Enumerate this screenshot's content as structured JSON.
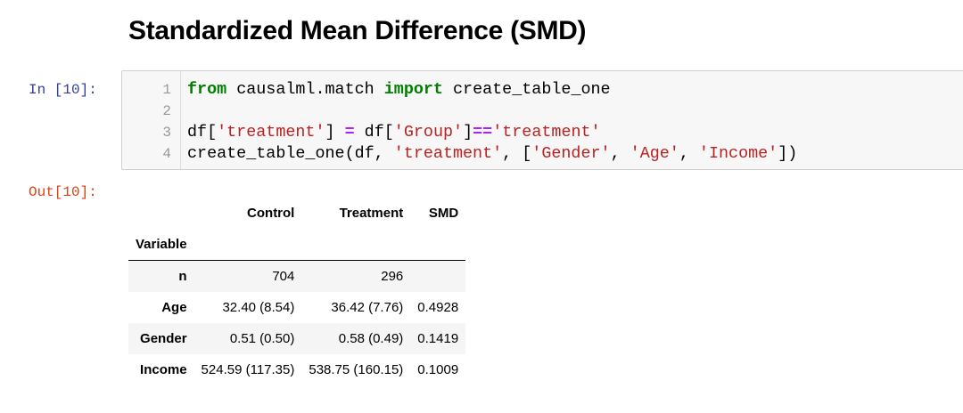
{
  "heading": "Standardized Mean Difference (SMD)",
  "cell": {
    "in_prompt": "In [10]:",
    "out_prompt": "Out[10]:",
    "line_numbers": [
      "1",
      "2",
      "3",
      "4"
    ],
    "code": {
      "l1": {
        "kw1": "from",
        "t1": " causalml.match ",
        "kw2": "import",
        "t2": " create_table_one"
      },
      "l3": {
        "t1": "df[",
        "s1": "'treatment'",
        "t2": "] ",
        "op1": "=",
        "t3": " df[",
        "s2": "'Group'",
        "t4": "]",
        "op2": "==",
        "s3": "'treatment'"
      },
      "l4": {
        "t1": "create_table_one(df, ",
        "s1": "'treatment'",
        "t2": ", [",
        "s2": "'Gender'",
        "t3": ", ",
        "s3": "'Age'",
        "t4": ", ",
        "s4": "'Income'",
        "t5": "])"
      }
    }
  },
  "table": {
    "columns": [
      "Control",
      "Treatment",
      "SMD"
    ],
    "index_name": "Variable",
    "rows": [
      {
        "label": "n",
        "control": "704",
        "treatment": "296",
        "smd": ""
      },
      {
        "label": "Age",
        "control": "32.40 (8.54)",
        "treatment": "36.42 (7.76)",
        "smd": "0.4928"
      },
      {
        "label": "Gender",
        "control": "0.51 (0.50)",
        "treatment": "0.58 (0.49)",
        "smd": "0.1419"
      },
      {
        "label": "Income",
        "control": "524.59 (117.35)",
        "treatment": "538.75 (160.15)",
        "smd": "0.1009"
      }
    ]
  }
}
